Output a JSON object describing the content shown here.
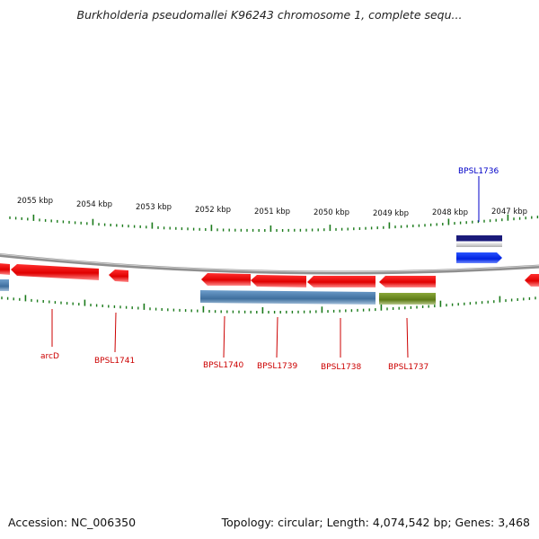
{
  "header": {
    "title": "Burkholderia pseudomallei K96243 chromosome 1, complete sequ..."
  },
  "footer": {
    "accession": "Accession: NC_006350",
    "summary": "Topology: circular; Length: 4,074,542 bp; Genes: 3,468"
  },
  "ruler": {
    "ticks": [
      {
        "label": "2055 kbp"
      },
      {
        "label": "2054 kbp"
      },
      {
        "label": "2053 kbp"
      },
      {
        "label": "2052 kbp"
      },
      {
        "label": "2051 kbp"
      },
      {
        "label": "2050 kbp"
      },
      {
        "label": "2049 kbp"
      },
      {
        "label": "2048 kbp"
      },
      {
        "label": "2047 kbp"
      }
    ]
  },
  "genes": [
    {
      "label": "BPSL1736",
      "color": "#0000c8"
    },
    {
      "label": "arcD",
      "color": "#cc0000"
    },
    {
      "label": "BPSL1741",
      "color": "#cc0000"
    },
    {
      "label": "BPSL1740",
      "color": "#cc0000"
    },
    {
      "label": "BPSL1739",
      "color": "#cc0000"
    },
    {
      "label": "BPSL1738",
      "color": "#cc0000"
    },
    {
      "label": "BPSL1737",
      "color": "#cc0000"
    }
  ],
  "colors": {
    "cds": "#ee0000",
    "gene_blue": "#0033ee",
    "dark_navy": "#1a1a7a",
    "steel_blue": "#4a7fb0",
    "olive": "#6b8a1f",
    "tick_green": "#1a7a1a",
    "backbone": "#8a8a8a"
  }
}
